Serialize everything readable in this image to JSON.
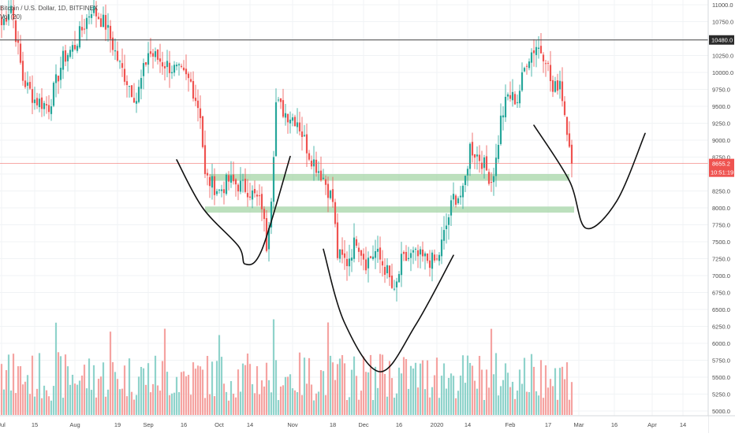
{
  "legend": {
    "symbol_line": "Bitcoin / U.S. Dollar, 1D, BITFINEX",
    "volume_line": "Vol (20)"
  },
  "colors": {
    "up": "#26a69a",
    "down": "#ef5350",
    "up_volume": "#8fd3cb",
    "down_volume": "#f5a3a1",
    "support_zone": "#a5d6a7",
    "resistance_line": "#444444",
    "price_line": "#ef5350",
    "drawing": "#111111"
  },
  "chart_data": {
    "type": "candlestick",
    "title": "Bitcoin / U.S. Dollar, 1D, BITFINEX",
    "ylim": [
      4900,
      11100
    ],
    "y_ticks": [
      5000,
      5250,
      5500,
      5750,
      6000,
      6250,
      6500,
      6750,
      7000,
      7250,
      7500,
      7750,
      8000,
      8250,
      8500,
      8750,
      9000,
      9250,
      9500,
      9750,
      10000,
      10250,
      10500,
      10750,
      11000
    ],
    "y_tick_labels": [
      "5000.0",
      "5250.0",
      "5500.0",
      "5750.0",
      "6000.0",
      "6250.0",
      "6500.0",
      "6750.0",
      "7000.0",
      "7250.0",
      "7500.0",
      "7750.0",
      "8000.0",
      "8250.0",
      "8500.0",
      "8750.0",
      "9000.0",
      "9250.0",
      "9500.0",
      "9750.0",
      "10000.0",
      "10250.0",
      "10500.0",
      "10750.0",
      "11000.0"
    ],
    "x_labels": [
      "Jul",
      "15",
      "Aug",
      "19",
      "Sep",
      "16",
      "Oct",
      "14",
      "Nov",
      "18",
      "Dec",
      "16",
      "2020",
      "14",
      "Feb",
      "17",
      "Mar",
      "16",
      "Apr",
      "14"
    ],
    "x_label_days": [
      0,
      14,
      31,
      49,
      62,
      77,
      92,
      105,
      123,
      140,
      153,
      168,
      184,
      197,
      215,
      231,
      244,
      259,
      275,
      288
    ],
    "grid": true,
    "resistance_level": 10480,
    "resistance_label": "10480.0",
    "last_price": 8655.2,
    "last_price_label": "8655.2",
    "countdown_label": "10:51:19",
    "support_zones": [
      {
        "from": 8400,
        "to": 8500,
        "start_day": 88,
        "end_day": 240
      },
      {
        "from": 7930,
        "to": 8020,
        "start_day": 86,
        "end_day": 242
      }
    ],
    "sketch_curves": [
      [
        [
          74,
          8710
        ],
        [
          85,
          8000
        ],
        [
          100,
          7440
        ],
        [
          103,
          7170
        ],
        [
          110,
          7380
        ],
        [
          122,
          8760
        ]
      ],
      [
        [
          136,
          7390
        ],
        [
          145,
          6300
        ],
        [
          160,
          5580
        ],
        [
          175,
          6270
        ],
        [
          191,
          7300
        ]
      ],
      [
        [
          225,
          9220
        ],
        [
          240,
          8400
        ],
        [
          247,
          7700
        ],
        [
          260,
          8100
        ],
        [
          272,
          9100
        ]
      ]
    ],
    "ohlc_anchors": [
      [
        0,
        10700
      ],
      [
        4,
        11000
      ],
      [
        9,
        9900
      ],
      [
        14,
        9600
      ],
      [
        20,
        9500
      ],
      [
        26,
        10200
      ],
      [
        31,
        10400
      ],
      [
        38,
        10950
      ],
      [
        44,
        10700
      ],
      [
        50,
        10100
      ],
      [
        57,
        9600
      ],
      [
        62,
        10300
      ],
      [
        68,
        10150
      ],
      [
        75,
        10000
      ],
      [
        80,
        9850
      ],
      [
        84,
        9400
      ],
      [
        86,
        8450
      ],
      [
        92,
        8250
      ],
      [
        96,
        8400
      ],
      [
        104,
        8280
      ],
      [
        110,
        8050
      ],
      [
        112,
        7450
      ],
      [
        114,
        8200
      ],
      [
        116,
        9550
      ],
      [
        120,
        9400
      ],
      [
        125,
        9300
      ],
      [
        130,
        8800
      ],
      [
        136,
        8450
      ],
      [
        140,
        8100
      ],
      [
        142,
        7300
      ],
      [
        146,
        7200
      ],
      [
        150,
        7550
      ],
      [
        154,
        7200
      ],
      [
        158,
        7350
      ],
      [
        163,
        7050
      ],
      [
        166,
        6700
      ],
      [
        169,
        7200
      ],
      [
        174,
        7300
      ],
      [
        178,
        7250
      ],
      [
        184,
        7200
      ],
      [
        187,
        7600
      ],
      [
        191,
        8150
      ],
      [
        195,
        8200
      ],
      [
        198,
        8900
      ],
      [
        203,
        8700
      ],
      [
        207,
        8400
      ],
      [
        209,
        8700
      ],
      [
        211,
        9300
      ],
      [
        214,
        9650
      ],
      [
        218,
        9600
      ],
      [
        222,
        10200
      ],
      [
        226,
        10400
      ],
      [
        230,
        10250
      ],
      [
        233,
        9700
      ],
      [
        236,
        9900
      ],
      [
        238,
        9400
      ],
      [
        240,
        9000
      ],
      [
        241,
        8655
      ]
    ],
    "volume_range": [
      0,
      100
    ]
  }
}
